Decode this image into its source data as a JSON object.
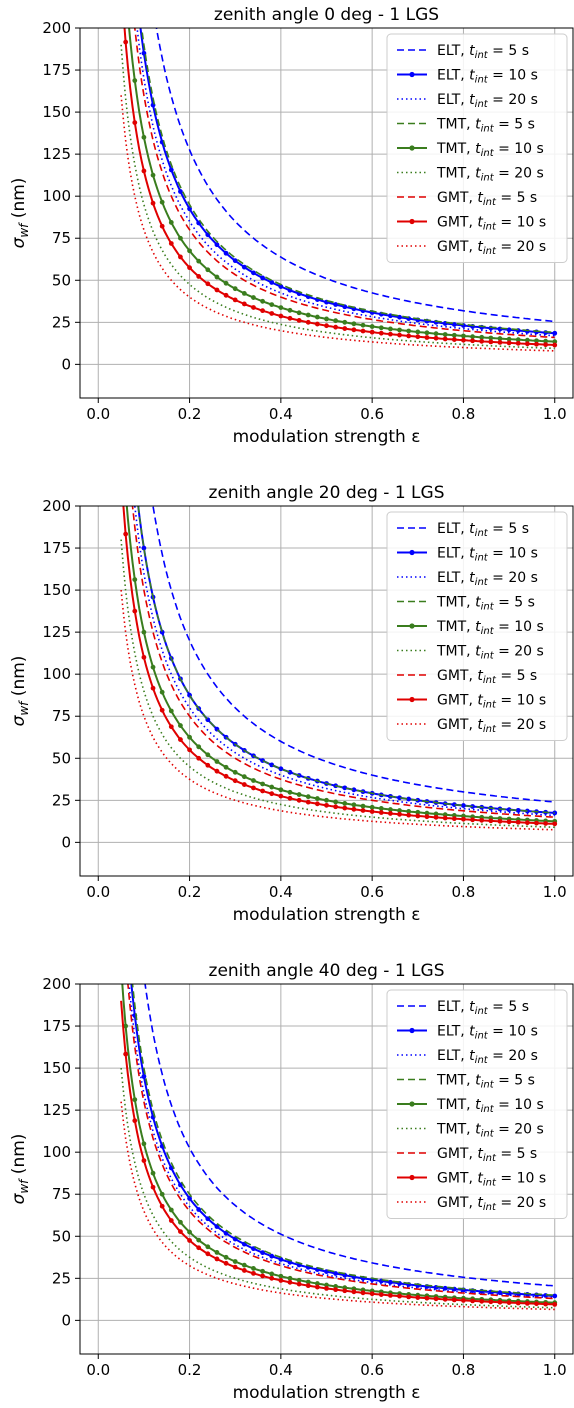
{
  "chart_data": [
    {
      "type": "line",
      "title": "zenith angle 0 deg - 1 LGS",
      "xlabel": "modulation strength ε",
      "ylabel_base": "σ",
      "ylabel_sub": "wf",
      "ylabel_unit": " (nm)",
      "xlim": [
        -0.04,
        1.04
      ],
      "ylim": [
        -20,
        200
      ],
      "xticks": [
        "0.0",
        "0.2",
        "0.4",
        "0.6",
        "0.8",
        "1.0"
      ],
      "yticks": [
        "0",
        "25",
        "50",
        "75",
        "100",
        "125",
        "150",
        "175",
        "200"
      ],
      "grid": true,
      "legend_position": "top-right",
      "x_range": [
        0.05,
        1.0
      ],
      "series": [
        {
          "name": "ELT, t",
          "sub": "int",
          "suffix": " = 5 s",
          "color": "#0000ff",
          "style": "dashed",
          "value_at_eps_1": 25.5
        },
        {
          "name": "ELT, t",
          "sub": "int",
          "suffix": " = 10 s",
          "color": "#0000ff",
          "style": "solid-marker",
          "value_at_eps_1": 18.5
        },
        {
          "name": "ELT, t",
          "sub": "int",
          "suffix": " = 20 s",
          "color": "#0000ff",
          "style": "dotted",
          "value_at_eps_1": 17.0
        },
        {
          "name": "TMT, t",
          "sub": "int",
          "suffix": " = 5 s",
          "color": "#3a7d1e",
          "style": "dashed",
          "value_at_eps_1": 19.0
        },
        {
          "name": "TMT, t",
          "sub": "int",
          "suffix": " = 10 s",
          "color": "#3a7d1e",
          "style": "solid-marker",
          "value_at_eps_1": 13.5
        },
        {
          "name": "TMT, t",
          "sub": "int",
          "suffix": " = 20 s",
          "color": "#3a7d1e",
          "style": "dotted",
          "value_at_eps_1": 9.5
        },
        {
          "name": "GMT, t",
          "sub": "int",
          "suffix": " = 5 s",
          "color": "#e00000",
          "style": "dashed",
          "value_at_eps_1": 16.0
        },
        {
          "name": "GMT, t",
          "sub": "int",
          "suffix": " = 10 s",
          "color": "#e00000",
          "style": "solid-marker",
          "value_at_eps_1": 11.5
        },
        {
          "name": "GMT, t",
          "sub": "int",
          "suffix": " = 20 s",
          "color": "#e00000",
          "style": "dotted",
          "value_at_eps_1": 8.0
        }
      ]
    },
    {
      "type": "line",
      "title": "zenith angle 20 deg - 1 LGS",
      "xlabel": "modulation strength ε",
      "ylabel_base": "σ",
      "ylabel_sub": "wf",
      "ylabel_unit": " (nm)",
      "xlim": [
        -0.04,
        1.04
      ],
      "ylim": [
        -20,
        200
      ],
      "xticks": [
        "0.0",
        "0.2",
        "0.4",
        "0.6",
        "0.8",
        "1.0"
      ],
      "yticks": [
        "0",
        "25",
        "50",
        "75",
        "100",
        "125",
        "150",
        "175",
        "200"
      ],
      "grid": true,
      "legend_position": "top-right",
      "x_range": [
        0.05,
        1.0
      ],
      "series": [
        {
          "name": "ELT, t",
          "sub": "int",
          "suffix": " = 5 s",
          "color": "#0000ff",
          "style": "dashed",
          "value_at_eps_1": 24.0
        },
        {
          "name": "ELT, t",
          "sub": "int",
          "suffix": " = 10 s",
          "color": "#0000ff",
          "style": "solid-marker",
          "value_at_eps_1": 17.5
        },
        {
          "name": "ELT, t",
          "sub": "int",
          "suffix": " = 20 s",
          "color": "#0000ff",
          "style": "dotted",
          "value_at_eps_1": 16.0
        },
        {
          "name": "TMT, t",
          "sub": "int",
          "suffix": " = 5 s",
          "color": "#3a7d1e",
          "style": "dashed",
          "value_at_eps_1": 17.5
        },
        {
          "name": "TMT, t",
          "sub": "int",
          "suffix": " = 10 s",
          "color": "#3a7d1e",
          "style": "solid-marker",
          "value_at_eps_1": 12.5
        },
        {
          "name": "TMT, t",
          "sub": "int",
          "suffix": " = 20 s",
          "color": "#3a7d1e",
          "style": "dotted",
          "value_at_eps_1": 9.0
        },
        {
          "name": "GMT, t",
          "sub": "int",
          "suffix": " = 5 s",
          "color": "#e00000",
          "style": "dashed",
          "value_at_eps_1": 15.0
        },
        {
          "name": "GMT, t",
          "sub": "int",
          "suffix": " = 10 s",
          "color": "#e00000",
          "style": "solid-marker",
          "value_at_eps_1": 11.0
        },
        {
          "name": "GMT, t",
          "sub": "int",
          "suffix": " = 20 s",
          "color": "#e00000",
          "style": "dotted",
          "value_at_eps_1": 7.5
        }
      ]
    },
    {
      "type": "line",
      "title": "zenith angle 40 deg - 1 LGS",
      "xlabel": "modulation strength ε",
      "ylabel_base": "σ",
      "ylabel_sub": "wf",
      "ylabel_unit": " (nm)",
      "xlim": [
        -0.04,
        1.04
      ],
      "ylim": [
        -20,
        200
      ],
      "xticks": [
        "0.0",
        "0.2",
        "0.4",
        "0.6",
        "0.8",
        "1.0"
      ],
      "yticks": [
        "0",
        "25",
        "50",
        "75",
        "100",
        "125",
        "150",
        "175",
        "200"
      ],
      "grid": true,
      "legend_position": "top-right",
      "x_range": [
        0.05,
        1.0
      ],
      "series": [
        {
          "name": "ELT, t",
          "sub": "int",
          "suffix": " = 5 s",
          "color": "#0000ff",
          "style": "dashed",
          "value_at_eps_1": 20.5
        },
        {
          "name": "ELT, t",
          "sub": "int",
          "suffix": " = 10 s",
          "color": "#0000ff",
          "style": "solid-marker",
          "value_at_eps_1": 14.5
        },
        {
          "name": "ELT, t",
          "sub": "int",
          "suffix": " = 20 s",
          "color": "#0000ff",
          "style": "dotted",
          "value_at_eps_1": 13.5
        },
        {
          "name": "TMT, t",
          "sub": "int",
          "suffix": " = 5 s",
          "color": "#3a7d1e",
          "style": "dashed",
          "value_at_eps_1": 15.0
        },
        {
          "name": "TMT, t",
          "sub": "int",
          "suffix": " = 10 s",
          "color": "#3a7d1e",
          "style": "solid-marker",
          "value_at_eps_1": 10.5
        },
        {
          "name": "TMT, t",
          "sub": "int",
          "suffix": " = 20 s",
          "color": "#3a7d1e",
          "style": "dotted",
          "value_at_eps_1": 7.5
        },
        {
          "name": "GMT, t",
          "sub": "int",
          "suffix": " = 5 s",
          "color": "#e00000",
          "style": "dashed",
          "value_at_eps_1": 13.0
        },
        {
          "name": "GMT, t",
          "sub": "int",
          "suffix": " = 10 s",
          "color": "#e00000",
          "style": "solid-marker",
          "value_at_eps_1": 9.5
        },
        {
          "name": "GMT, t",
          "sub": "int",
          "suffix": " = 20 s",
          "color": "#e00000",
          "style": "dotted",
          "value_at_eps_1": 6.5
        }
      ]
    }
  ]
}
